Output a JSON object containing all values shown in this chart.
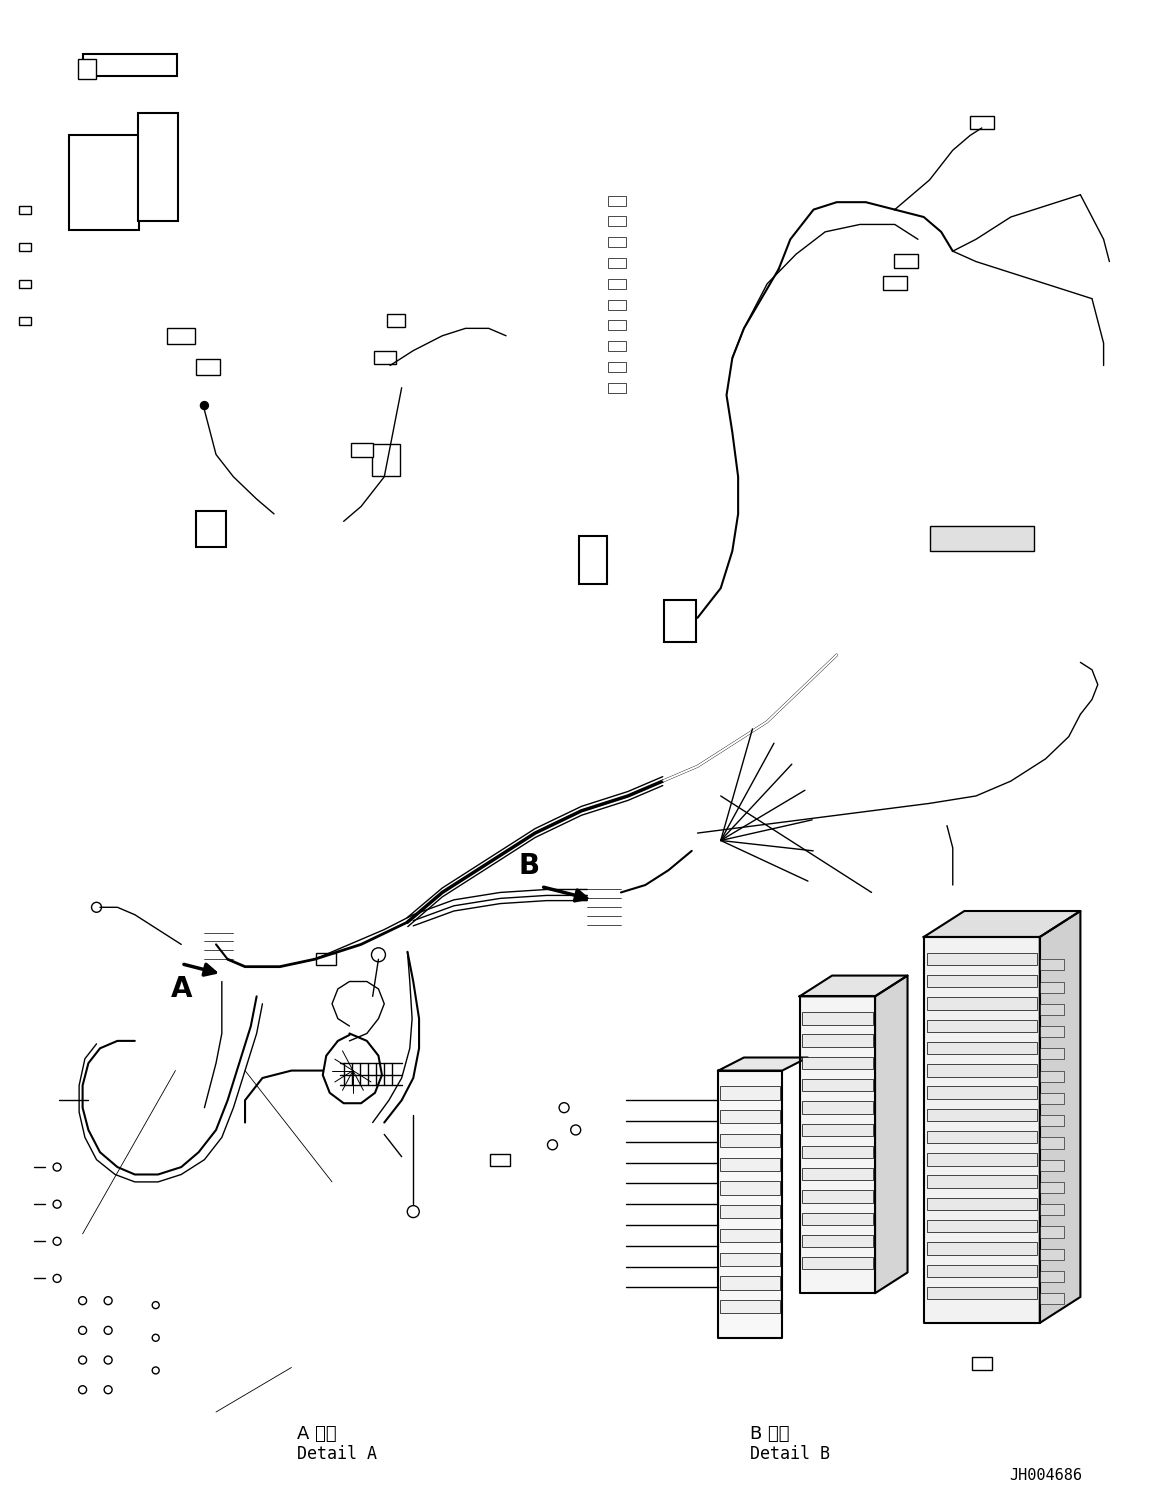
{
  "figure_width": 11.63,
  "figure_height": 14.88,
  "dpi": 100,
  "bg_color": "#ffffff",
  "line_color": "#000000",
  "title_code": "JH004686",
  "label_A": "A",
  "label_B": "B",
  "detail_a_jp": "A 詳細",
  "detail_a_en": "Detail A",
  "detail_b_jp": "B 詳細",
  "detail_b_en": "Detail B"
}
